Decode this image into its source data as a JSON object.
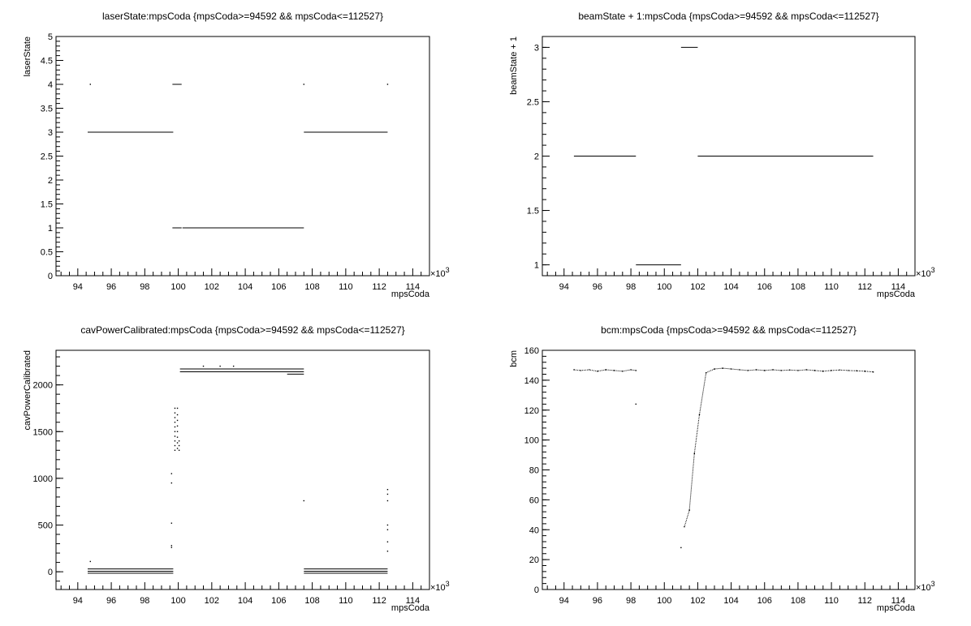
{
  "chart_data": [
    {
      "type": "scatter",
      "title": "laserState:mpsCoda {mpsCoda>=94592 && mpsCoda<=112527}",
      "xlabel": "mpsCoda",
      "ylabel": "laserState",
      "x_exponent_label": "×10",
      "x_exponent": "3",
      "xlim": [
        92.7,
        115.0
      ],
      "ylim": [
        0,
        5
      ],
      "x_ticks": [
        94,
        96,
        98,
        100,
        102,
        104,
        106,
        108,
        110,
        112,
        114
      ],
      "y_ticks": [
        "0",
        "0.5",
        "1",
        "1.5",
        "2",
        "2.5",
        "3",
        "3.5",
        "4",
        "4.5",
        "5"
      ],
      "segments": [
        {
          "x0": 94.59,
          "x1": 99.7,
          "y": 3
        },
        {
          "x0": 99.65,
          "x1": 100.2,
          "y": 1
        },
        {
          "x0": 100.25,
          "x1": 107.5,
          "y": 1
        },
        {
          "x0": 99.65,
          "x1": 100.2,
          "y": 4
        },
        {
          "x0": 107.5,
          "x1": 112.5,
          "y": 3
        }
      ],
      "points": [
        {
          "x": 94.75,
          "y": 4
        },
        {
          "x": 107.5,
          "y": 4
        },
        {
          "x": 112.5,
          "y": 4
        }
      ]
    },
    {
      "type": "scatter",
      "title": "beamState + 1:mpsCoda {mpsCoda>=94592 && mpsCoda<=112527}",
      "xlabel": "mpsCoda",
      "ylabel": "beamState + 1",
      "x_exponent_label": "×10",
      "x_exponent": "3",
      "xlim": [
        92.7,
        115.0
      ],
      "ylim": [
        0.9,
        3.1
      ],
      "x_ticks": [
        94,
        96,
        98,
        100,
        102,
        104,
        106,
        108,
        110,
        112,
        114
      ],
      "y_ticks": [
        "1",
        "1.5",
        "2",
        "2.5",
        "3"
      ],
      "segments": [
        {
          "x0": 94.59,
          "x1": 98.3,
          "y": 2
        },
        {
          "x0": 98.3,
          "x1": 101.0,
          "y": 1
        },
        {
          "x0": 101.0,
          "x1": 102.0,
          "y": 3
        },
        {
          "x0": 102.0,
          "x1": 112.5,
          "y": 2
        }
      ],
      "points": []
    },
    {
      "type": "scatter",
      "title": "cavPowerCalibrated:mpsCoda {mpsCoda>=94592 && mpsCoda<=112527}",
      "xlabel": "mpsCoda",
      "ylabel": "cavPowerCalibrated",
      "x_exponent_label": "×10",
      "x_exponent": "3",
      "xlim": [
        92.7,
        115.0
      ],
      "ylim": [
        -190,
        2370
      ],
      "x_ticks": [
        94,
        96,
        98,
        100,
        102,
        104,
        106,
        108,
        110,
        112,
        114
      ],
      "y_ticks": [
        "0",
        "500",
        "1000",
        "1500",
        "2000"
      ],
      "segments": [
        {
          "x0": 94.59,
          "x1": 99.7,
          "y": 30
        },
        {
          "x0": 94.59,
          "x1": 99.7,
          "y": 5
        },
        {
          "x0": 94.59,
          "x1": 99.7,
          "y": -15
        },
        {
          "x0": 100.1,
          "x1": 107.5,
          "y": 2170
        },
        {
          "x0": 100.1,
          "x1": 107.5,
          "y": 2140
        },
        {
          "x0": 106.5,
          "x1": 107.5,
          "y": 2115
        },
        {
          "x0": 107.5,
          "x1": 112.5,
          "y": 30
        },
        {
          "x0": 107.5,
          "x1": 112.5,
          "y": 5
        },
        {
          "x0": 107.5,
          "x1": 112.5,
          "y": -15
        }
      ],
      "points": [
        {
          "x": 94.75,
          "y": 110
        },
        {
          "x": 99.6,
          "y": 1050
        },
        {
          "x": 99.6,
          "y": 950
        },
        {
          "x": 99.6,
          "y": 520
        },
        {
          "x": 99.6,
          "y": 280
        },
        {
          "x": 99.6,
          "y": 260
        },
        {
          "x": 99.8,
          "y": 1750
        },
        {
          "x": 99.8,
          "y": 1700
        },
        {
          "x": 99.8,
          "y": 1650
        },
        {
          "x": 99.8,
          "y": 1600
        },
        {
          "x": 99.8,
          "y": 1550
        },
        {
          "x": 99.8,
          "y": 1500
        },
        {
          "x": 99.8,
          "y": 1450
        },
        {
          "x": 99.8,
          "y": 1400
        },
        {
          "x": 99.8,
          "y": 1350
        },
        {
          "x": 99.8,
          "y": 1300
        },
        {
          "x": 99.95,
          "y": 1750
        },
        {
          "x": 99.95,
          "y": 1680
        },
        {
          "x": 99.95,
          "y": 1620
        },
        {
          "x": 99.95,
          "y": 1560
        },
        {
          "x": 99.95,
          "y": 1500
        },
        {
          "x": 99.95,
          "y": 1440
        },
        {
          "x": 99.95,
          "y": 1380
        },
        {
          "x": 99.95,
          "y": 1320
        },
        {
          "x": 100.05,
          "y": 1400
        },
        {
          "x": 100.05,
          "y": 1350
        },
        {
          "x": 100.05,
          "y": 1300
        },
        {
          "x": 101.5,
          "y": 2200
        },
        {
          "x": 102.5,
          "y": 2200
        },
        {
          "x": 103.3,
          "y": 2200
        },
        {
          "x": 107.5,
          "y": 760
        },
        {
          "x": 112.5,
          "y": 880
        },
        {
          "x": 112.5,
          "y": 830
        },
        {
          "x": 112.5,
          "y": 760
        },
        {
          "x": 112.5,
          "y": 500
        },
        {
          "x": 112.5,
          "y": 450
        },
        {
          "x": 112.5,
          "y": 320
        },
        {
          "x": 112.5,
          "y": 220
        }
      ]
    },
    {
      "type": "scatter",
      "title": "bcm:mpsCoda {mpsCoda>=94592 && mpsCoda<=112527}",
      "xlabel": "mpsCoda",
      "ylabel": "bcm",
      "x_exponent_label": "×10",
      "x_exponent": "3",
      "xlim": [
        92.7,
        115.0
      ],
      "ylim": [
        0,
        160
      ],
      "x_ticks": [
        94,
        96,
        98,
        100,
        102,
        104,
        106,
        108,
        110,
        112,
        114
      ],
      "y_ticks": [
        "0",
        "20",
        "40",
        "60",
        "80",
        "100",
        "120",
        "140",
        "160"
      ],
      "segments": [],
      "points": [
        {
          "x": 94.6,
          "y": 147
        },
        {
          "x": 95.0,
          "y": 146.5
        },
        {
          "x": 95.5,
          "y": 147
        },
        {
          "x": 96.0,
          "y": 146
        },
        {
          "x": 96.5,
          "y": 147
        },
        {
          "x": 97.0,
          "y": 146.5
        },
        {
          "x": 97.5,
          "y": 146
        },
        {
          "x": 98.0,
          "y": 147
        },
        {
          "x": 98.3,
          "y": 146.5
        },
        {
          "x": 98.3,
          "y": 124
        },
        {
          "x": 101.0,
          "y": 28
        },
        {
          "x": 101.2,
          "y": 42
        },
        {
          "x": 101.5,
          "y": 53
        },
        {
          "x": 101.8,
          "y": 91
        },
        {
          "x": 102.1,
          "y": 117
        },
        {
          "x": 102.5,
          "y": 145
        },
        {
          "x": 103.0,
          "y": 147.5
        },
        {
          "x": 103.5,
          "y": 148
        },
        {
          "x": 104.0,
          "y": 147.5
        },
        {
          "x": 104.5,
          "y": 147
        },
        {
          "x": 105.0,
          "y": 146.5
        },
        {
          "x": 105.5,
          "y": 147
        },
        {
          "x": 106.0,
          "y": 146.5
        },
        {
          "x": 106.5,
          "y": 147
        },
        {
          "x": 107.0,
          "y": 146.5
        },
        {
          "x": 107.5,
          "y": 146.8
        },
        {
          "x": 108.0,
          "y": 146.5
        },
        {
          "x": 108.5,
          "y": 147
        },
        {
          "x": 109.0,
          "y": 146.5
        },
        {
          "x": 109.5,
          "y": 146
        },
        {
          "x": 110.0,
          "y": 146.5
        },
        {
          "x": 110.5,
          "y": 146.8
        },
        {
          "x": 111.0,
          "y": 146.5
        },
        {
          "x": 111.5,
          "y": 146.3
        },
        {
          "x": 112.0,
          "y": 146
        },
        {
          "x": 112.5,
          "y": 145.5
        }
      ]
    }
  ]
}
